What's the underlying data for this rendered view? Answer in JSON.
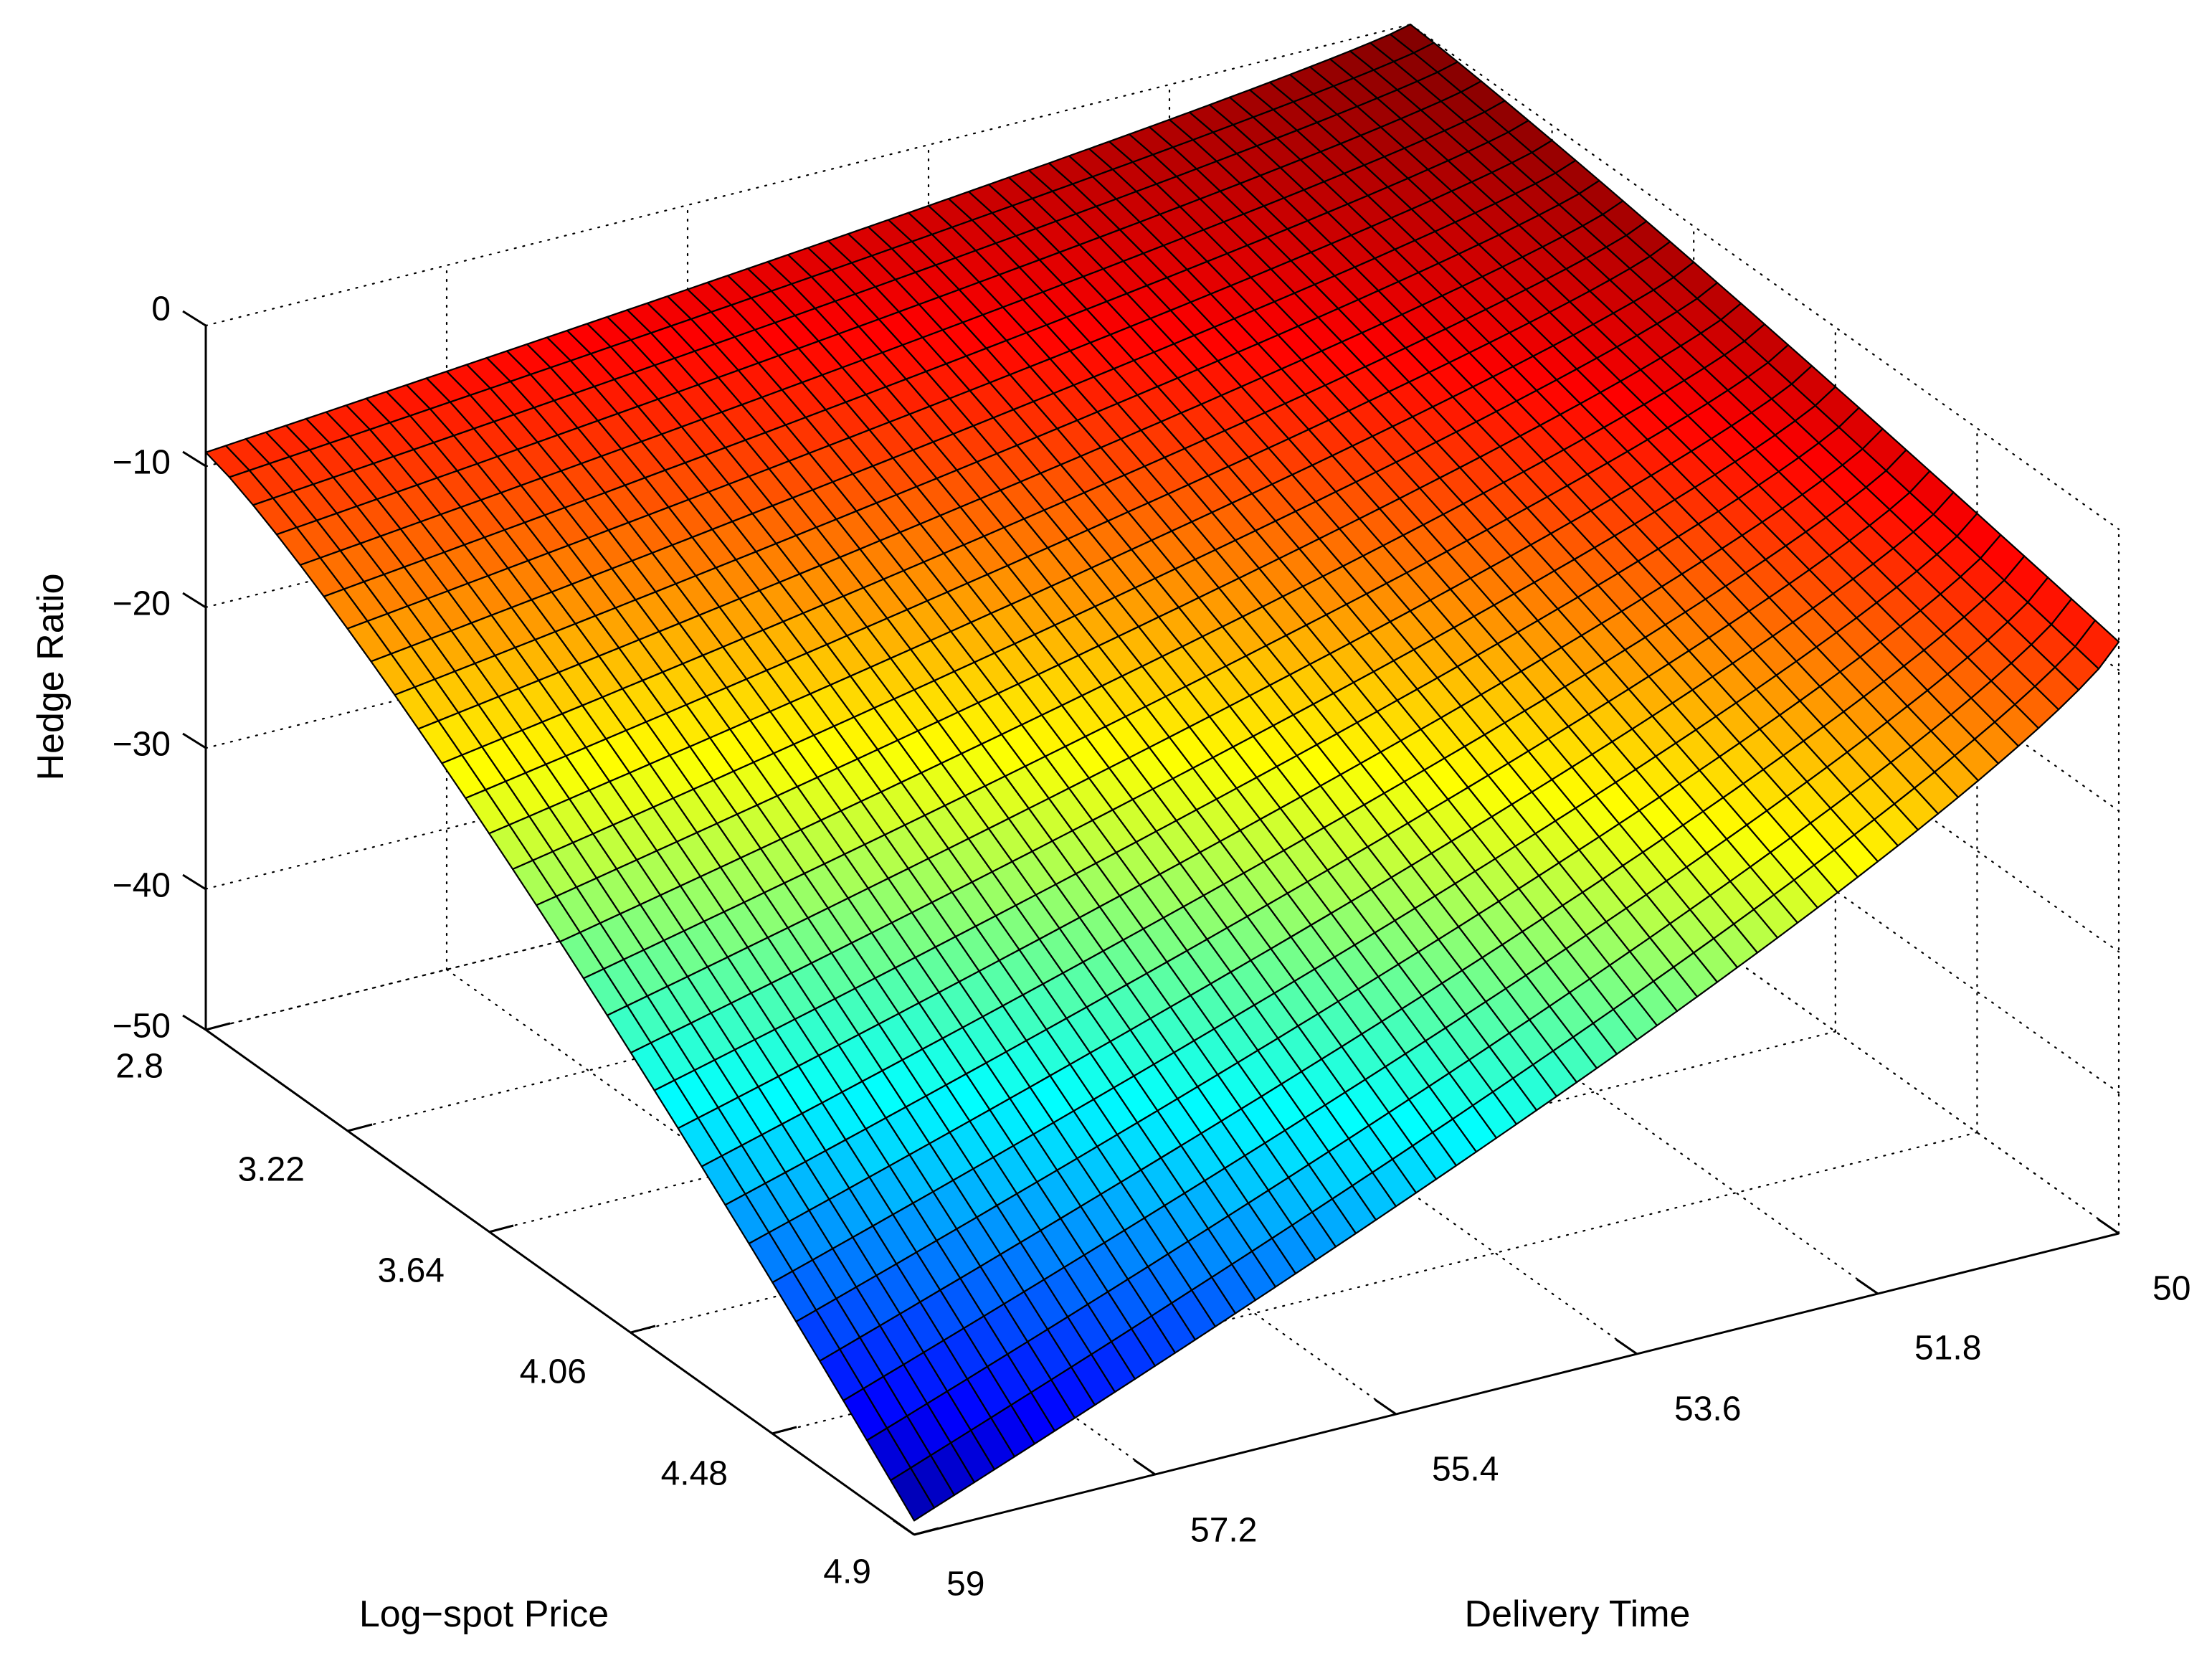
{
  "chart_data": {
    "type": "surface3d",
    "title": "",
    "xlabel": "Delivery Time",
    "ylabel": "Log−spot Price",
    "zlabel": "Hedge Ratio",
    "x_axis": {
      "label": "Delivery Time",
      "lim": [
        50,
        59
      ],
      "ticks": [
        50,
        51.8,
        53.6,
        55.4,
        57.2,
        59
      ],
      "tick_labels": [
        "50",
        "51.8",
        "53.6",
        "55.4",
        "57.2",
        "59"
      ]
    },
    "y_axis": {
      "label": "Log−spot Price",
      "lim": [
        2.8,
        4.9
      ],
      "ticks": [
        2.8,
        3.22,
        3.64,
        4.06,
        4.48,
        4.9
      ],
      "tick_labels": [
        "2.8",
        "3.22",
        "3.64",
        "4.06",
        "4.48",
        "4.9"
      ]
    },
    "z_axis": {
      "label": "Hedge Ratio",
      "lim": [
        -50,
        0
      ],
      "ticks": [
        -50,
        -40,
        -30,
        -20,
        -10,
        0
      ],
      "tick_labels": [
        "−50",
        "−40",
        "−30",
        "−20",
        "−10",
        "0"
      ]
    },
    "grid": true,
    "colormap": "jet",
    "colormap_stops": [
      "#00008f",
      "#0000ff",
      "#00ffff",
      "#ffff00",
      "#ff0000",
      "#800000"
    ],
    "edge_color": "#000000",
    "corner_values": [
      {
        "delivery_time": 50,
        "log_spot_price": 2.8,
        "hedge_ratio": 0
      },
      {
        "delivery_time": 59,
        "log_spot_price": 2.8,
        "hedge_ratio": -9
      },
      {
        "delivery_time": 50,
        "log_spot_price": 4.9,
        "hedge_ratio": -8
      },
      {
        "delivery_time": 59,
        "log_spot_price": 4.9,
        "hedge_ratio": -49
      }
    ],
    "grid_resolution": {
      "delivery_time_points": 60,
      "log_spot_price_points": 30
    }
  }
}
